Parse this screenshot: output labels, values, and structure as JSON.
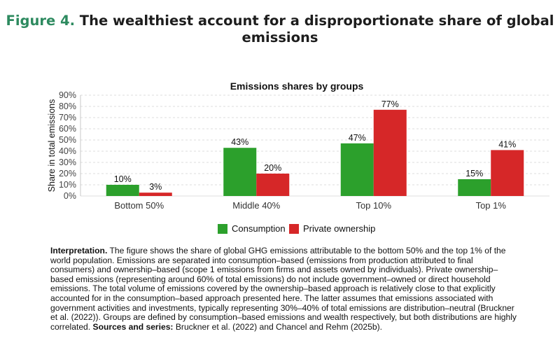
{
  "figure": {
    "number": "Figure 4.",
    "title": "The wealthiest account for a disproportionate share of global emissions"
  },
  "chart_data": {
    "type": "bar",
    "title": "Emissions shares by groups",
    "xlabel": "",
    "ylabel": "Share in total emissions",
    "categories": [
      "Bottom 50%",
      "Middle 40%",
      "Top 10%",
      "Top 1%"
    ],
    "series": [
      {
        "name": "Consumption",
        "color": "#2ca02c",
        "values": [
          10,
          43,
          47,
          15
        ],
        "labels": [
          "10%",
          "43%",
          "47%",
          "15%"
        ]
      },
      {
        "name": "Private ownership",
        "color": "#d62728",
        "values": [
          3,
          20,
          77,
          41
        ],
        "labels": [
          "3%",
          "20%",
          "77%",
          "41%"
        ]
      }
    ],
    "ylim": [
      0,
      90
    ],
    "yticks": [
      0,
      10,
      20,
      30,
      40,
      50,
      60,
      70,
      80,
      90
    ],
    "ytick_labels": [
      "0%",
      "10%",
      "20%",
      "30%",
      "40%",
      "50%",
      "60%",
      "70%",
      "80%",
      "90%"
    ],
    "grid": true,
    "legend_position": "bottom"
  },
  "caption": {
    "interpretation_label": "Interpretation.",
    "interpretation_text": "The figure shows the share of global GHG emissions attributable to the bottom 50% and the top 1% of the world population. Emissions are separated into consumption–based (emissions from production attributed to final consumers) and ownership–based (scope 1 emissions from firms and assets owned by individuals). Private ownership–based emissions (representing around 60% of total emissions) do not include government–owned or direct household emissions. The total volume of emissions covered by the ownership–based approach is relatively close to that explicitly accounted for in the consumption–based approach presented here. The latter assumes that emissions associated with government activities and investments, typically representing 30%–40% of total emissions are distribution–neutral (Bruckner et al. (2022)). Groups are defined by consumption–based emissions and wealth respectively, but both distributions are highly correlated.",
    "sources_label": "Sources and series:",
    "sources_text": "Bruckner et al. (2022) and Chancel and Rehm (2025b)."
  }
}
